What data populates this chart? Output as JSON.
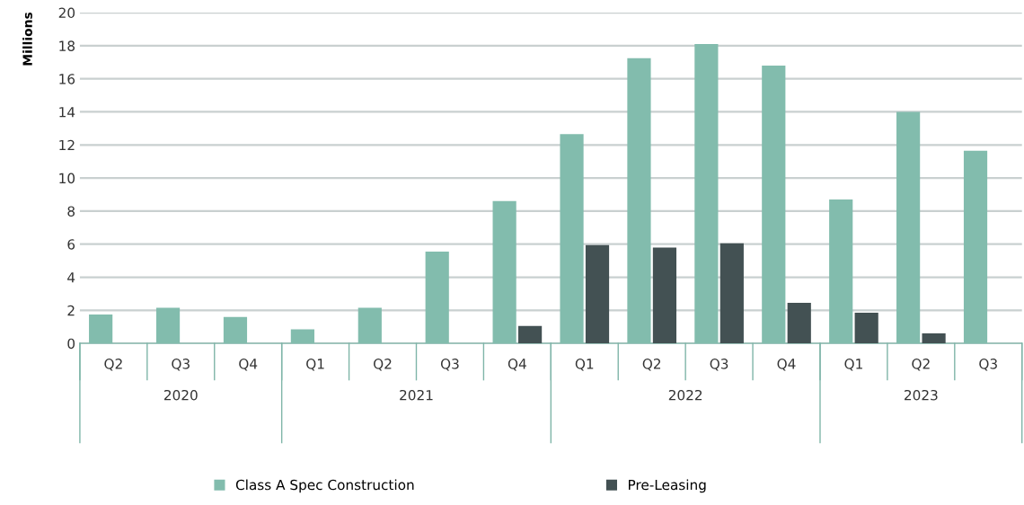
{
  "chart_data": {
    "type": "bar",
    "ylabel": "Millions",
    "categories": [
      "Q2",
      "Q3",
      "Q4",
      "Q1",
      "Q2",
      "Q3",
      "Q4",
      "Q1",
      "Q2",
      "Q3",
      "Q4",
      "Q1",
      "Q2",
      "Q3"
    ],
    "series": [
      {
        "name": "Class A Spec Construction",
        "color": "#82bcad",
        "values": [
          1.75,
          2.15,
          1.6,
          0.85,
          2.15,
          5.55,
          8.6,
          12.65,
          17.25,
          18.1,
          16.8,
          8.7,
          14.0,
          11.65
        ]
      },
      {
        "name": "Pre-Leasing",
        "color": "#435153",
        "values": [
          0,
          0,
          0,
          0,
          0,
          0,
          1.05,
          5.95,
          5.8,
          6.05,
          2.45,
          1.85,
          0.6,
          0
        ]
      }
    ],
    "annotations": [
      "2020",
      "2021",
      "2022",
      "2023"
    ],
    "ylim": [
      0,
      20
    ],
    "yticks": [
      0,
      2,
      4,
      6,
      8,
      10,
      12,
      14,
      16,
      18,
      20
    ],
    "grid": "y",
    "legend": "bottom"
  }
}
